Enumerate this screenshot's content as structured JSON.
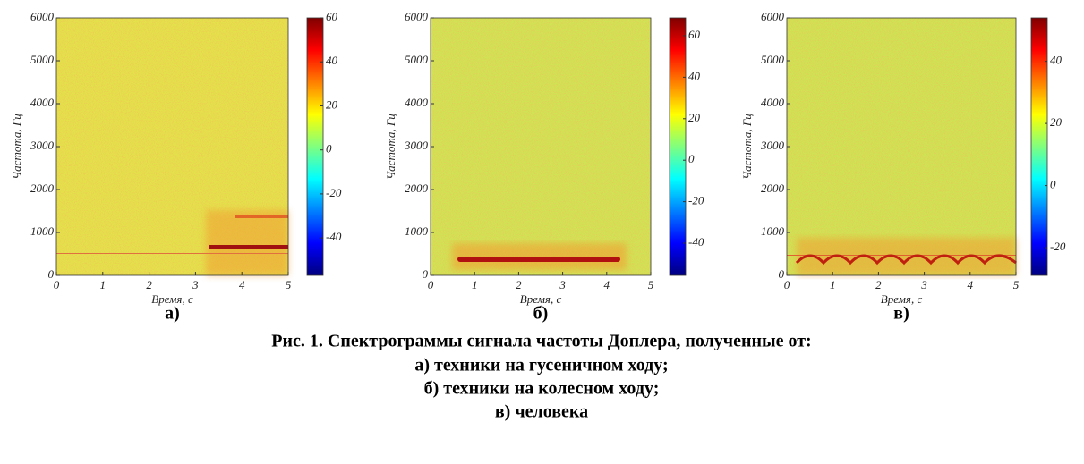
{
  "chart_data": [
    {
      "type": "spectrogram",
      "panel_label": "а)",
      "xlabel": "Время, с",
      "ylabel": "Частота, Гц",
      "xlim": [
        0,
        5
      ],
      "xticks": [
        0,
        1,
        2,
        3,
        4,
        5
      ],
      "ylim": [
        0,
        6000
      ],
      "yticks": [
        0,
        1000,
        2000,
        3000,
        4000,
        5000,
        6000
      ],
      "colormap": "jet",
      "clim": [
        -57,
        60
      ],
      "cticks": [
        -40,
        -20,
        0,
        20,
        40,
        60
      ]
    },
    {
      "type": "spectrogram",
      "panel_label": "б)",
      "xlabel": "Время, с",
      "ylabel": "Частота, Гц",
      "xlim": [
        0,
        5
      ],
      "xticks": [
        0,
        1,
        2,
        3,
        4,
        5
      ],
      "ylim": [
        0,
        6000
      ],
      "yticks": [
        0,
        1000,
        2000,
        3000,
        4000,
        5000,
        6000
      ],
      "colormap": "jet",
      "clim": [
        -55.5,
        68.6
      ],
      "cticks": [
        -40,
        -20,
        0,
        20,
        40,
        60
      ]
    },
    {
      "type": "spectrogram",
      "panel_label": "в)",
      "xlabel": "Время, с",
      "ylabel": "Частота, Гц",
      "xlim": [
        0,
        5
      ],
      "xticks": [
        0,
        1,
        2,
        3,
        4,
        5
      ],
      "ylim": [
        0,
        6000
      ],
      "yticks": [
        0,
        1000,
        2000,
        3000,
        4000,
        5000,
        6000
      ],
      "colormap": "jet",
      "clim": [
        -28.9,
        54
      ],
      "cticks": [
        -20,
        0,
        20,
        40
      ]
    }
  ],
  "caption": {
    "title": "Рис. 1. Спектрограммы сигнала частоты Доплера, полученные от:",
    "items": [
      "а) техники на гусеничном ходу;",
      "б) техники на колесном ходу;",
      "в) человека"
    ]
  }
}
